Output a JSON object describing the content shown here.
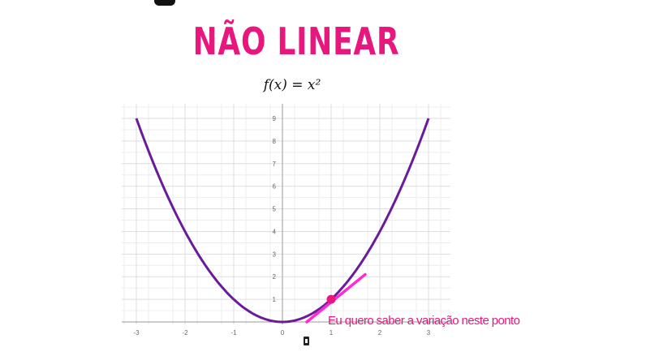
{
  "slide": {
    "title": "NÃO LINEAR",
    "formula": "f(x) = x²"
  },
  "chart_data": {
    "type": "line",
    "x_ticks": [
      -3,
      -2,
      -1,
      0,
      1,
      2,
      3
    ],
    "y_ticks": [
      1,
      2,
      3,
      4,
      5,
      6,
      7,
      8,
      9
    ],
    "xlim": [
      -3,
      3
    ],
    "ylim": [
      0,
      9
    ],
    "grid": true,
    "series": [
      {
        "x": [
          -3,
          -2.5,
          -2,
          -1.5,
          -1,
          -0.5,
          0,
          0.5,
          1,
          1.5,
          2,
          2.5,
          3
        ],
        "y": [
          9,
          6.25,
          4,
          2.25,
          1,
          0.25,
          0,
          0.25,
          1,
          2.25,
          4,
          6.25,
          9
        ],
        "color": "#6a1b9a"
      }
    ],
    "highlight_point": {
      "x": 1,
      "y": 1,
      "color": "#e8177d"
    },
    "tangent_line": {
      "x": [
        0.5,
        1.7
      ],
      "y": [
        0,
        2.1
      ],
      "color": "#ff2ad4"
    },
    "annotation": {
      "text": "Eu quero saber a variação neste ponto",
      "color": "#e8177d"
    }
  }
}
